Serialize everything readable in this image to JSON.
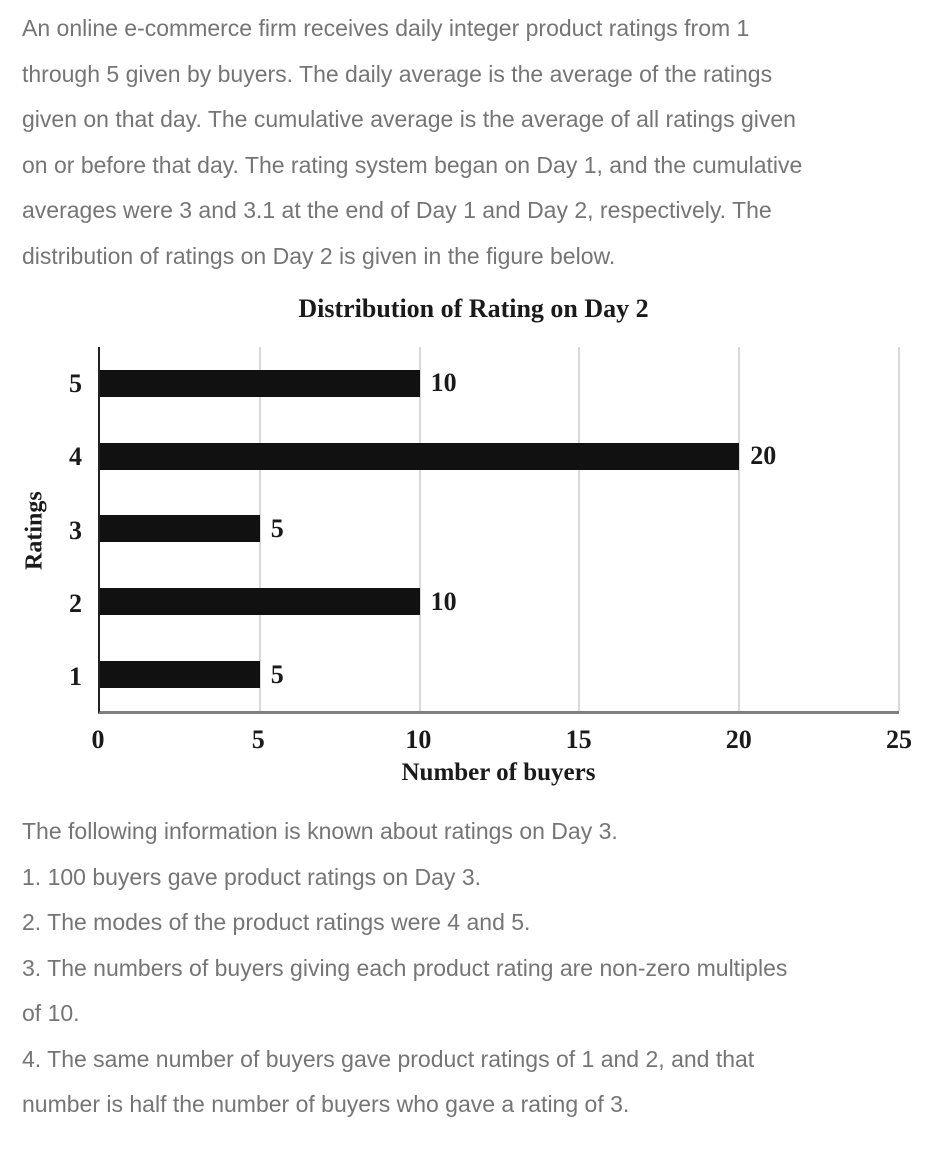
{
  "intro": {
    "lines": [
      "An online e-commerce firm receives daily integer product ratings from 1",
      "through 5 given by buyers. The daily average is the average of the ratings",
      "given on that day. The cumulative average is the average of all ratings given",
      "on or before that day. The rating system began on Day 1, and the cumulative",
      "averages were 3 and 3.1 at the end of Day 1 and Day 2, respectively. The",
      "distribution of ratings on Day 2 is given in the figure below."
    ]
  },
  "chart_data": {
    "type": "bar",
    "orientation": "horizontal",
    "title": "Distribution of Rating on Day 2",
    "ylabel": "Ratings",
    "xlabel": "Number of buyers",
    "categories": [
      "5",
      "4",
      "3",
      "2",
      "1"
    ],
    "values": [
      10,
      20,
      5,
      10,
      5
    ],
    "data_labels": [
      "10",
      "20",
      "5",
      "10",
      "5"
    ],
    "xticks": [
      "0",
      "5",
      "10",
      "15",
      "20",
      "25"
    ],
    "xlim": [
      0,
      25
    ],
    "grid": "vertical gridlines at every x tick",
    "legend": "none"
  },
  "info": {
    "lines": [
      "The following information is known about ratings on Day 3.",
      "1. 100 buyers gave product ratings on Day 3.",
      "2. The modes of the product ratings were 4 and 5.",
      "3. The numbers of buyers giving each product rating are non-zero multiples",
      "of 10.",
      "4. The same number of buyers gave product ratings of 1 and 2, and that",
      "number is half the number of buyers who gave a rating of 3."
    ]
  },
  "colors": {
    "page_bg": "#ffffff",
    "body_text": "#757575",
    "chart_text": "#1a1a1a",
    "bar_fill": "#111111",
    "gridline": "#d9d9d9",
    "x_axis_line": "#7f7f7f",
    "y_axis_line": "#222222"
  }
}
